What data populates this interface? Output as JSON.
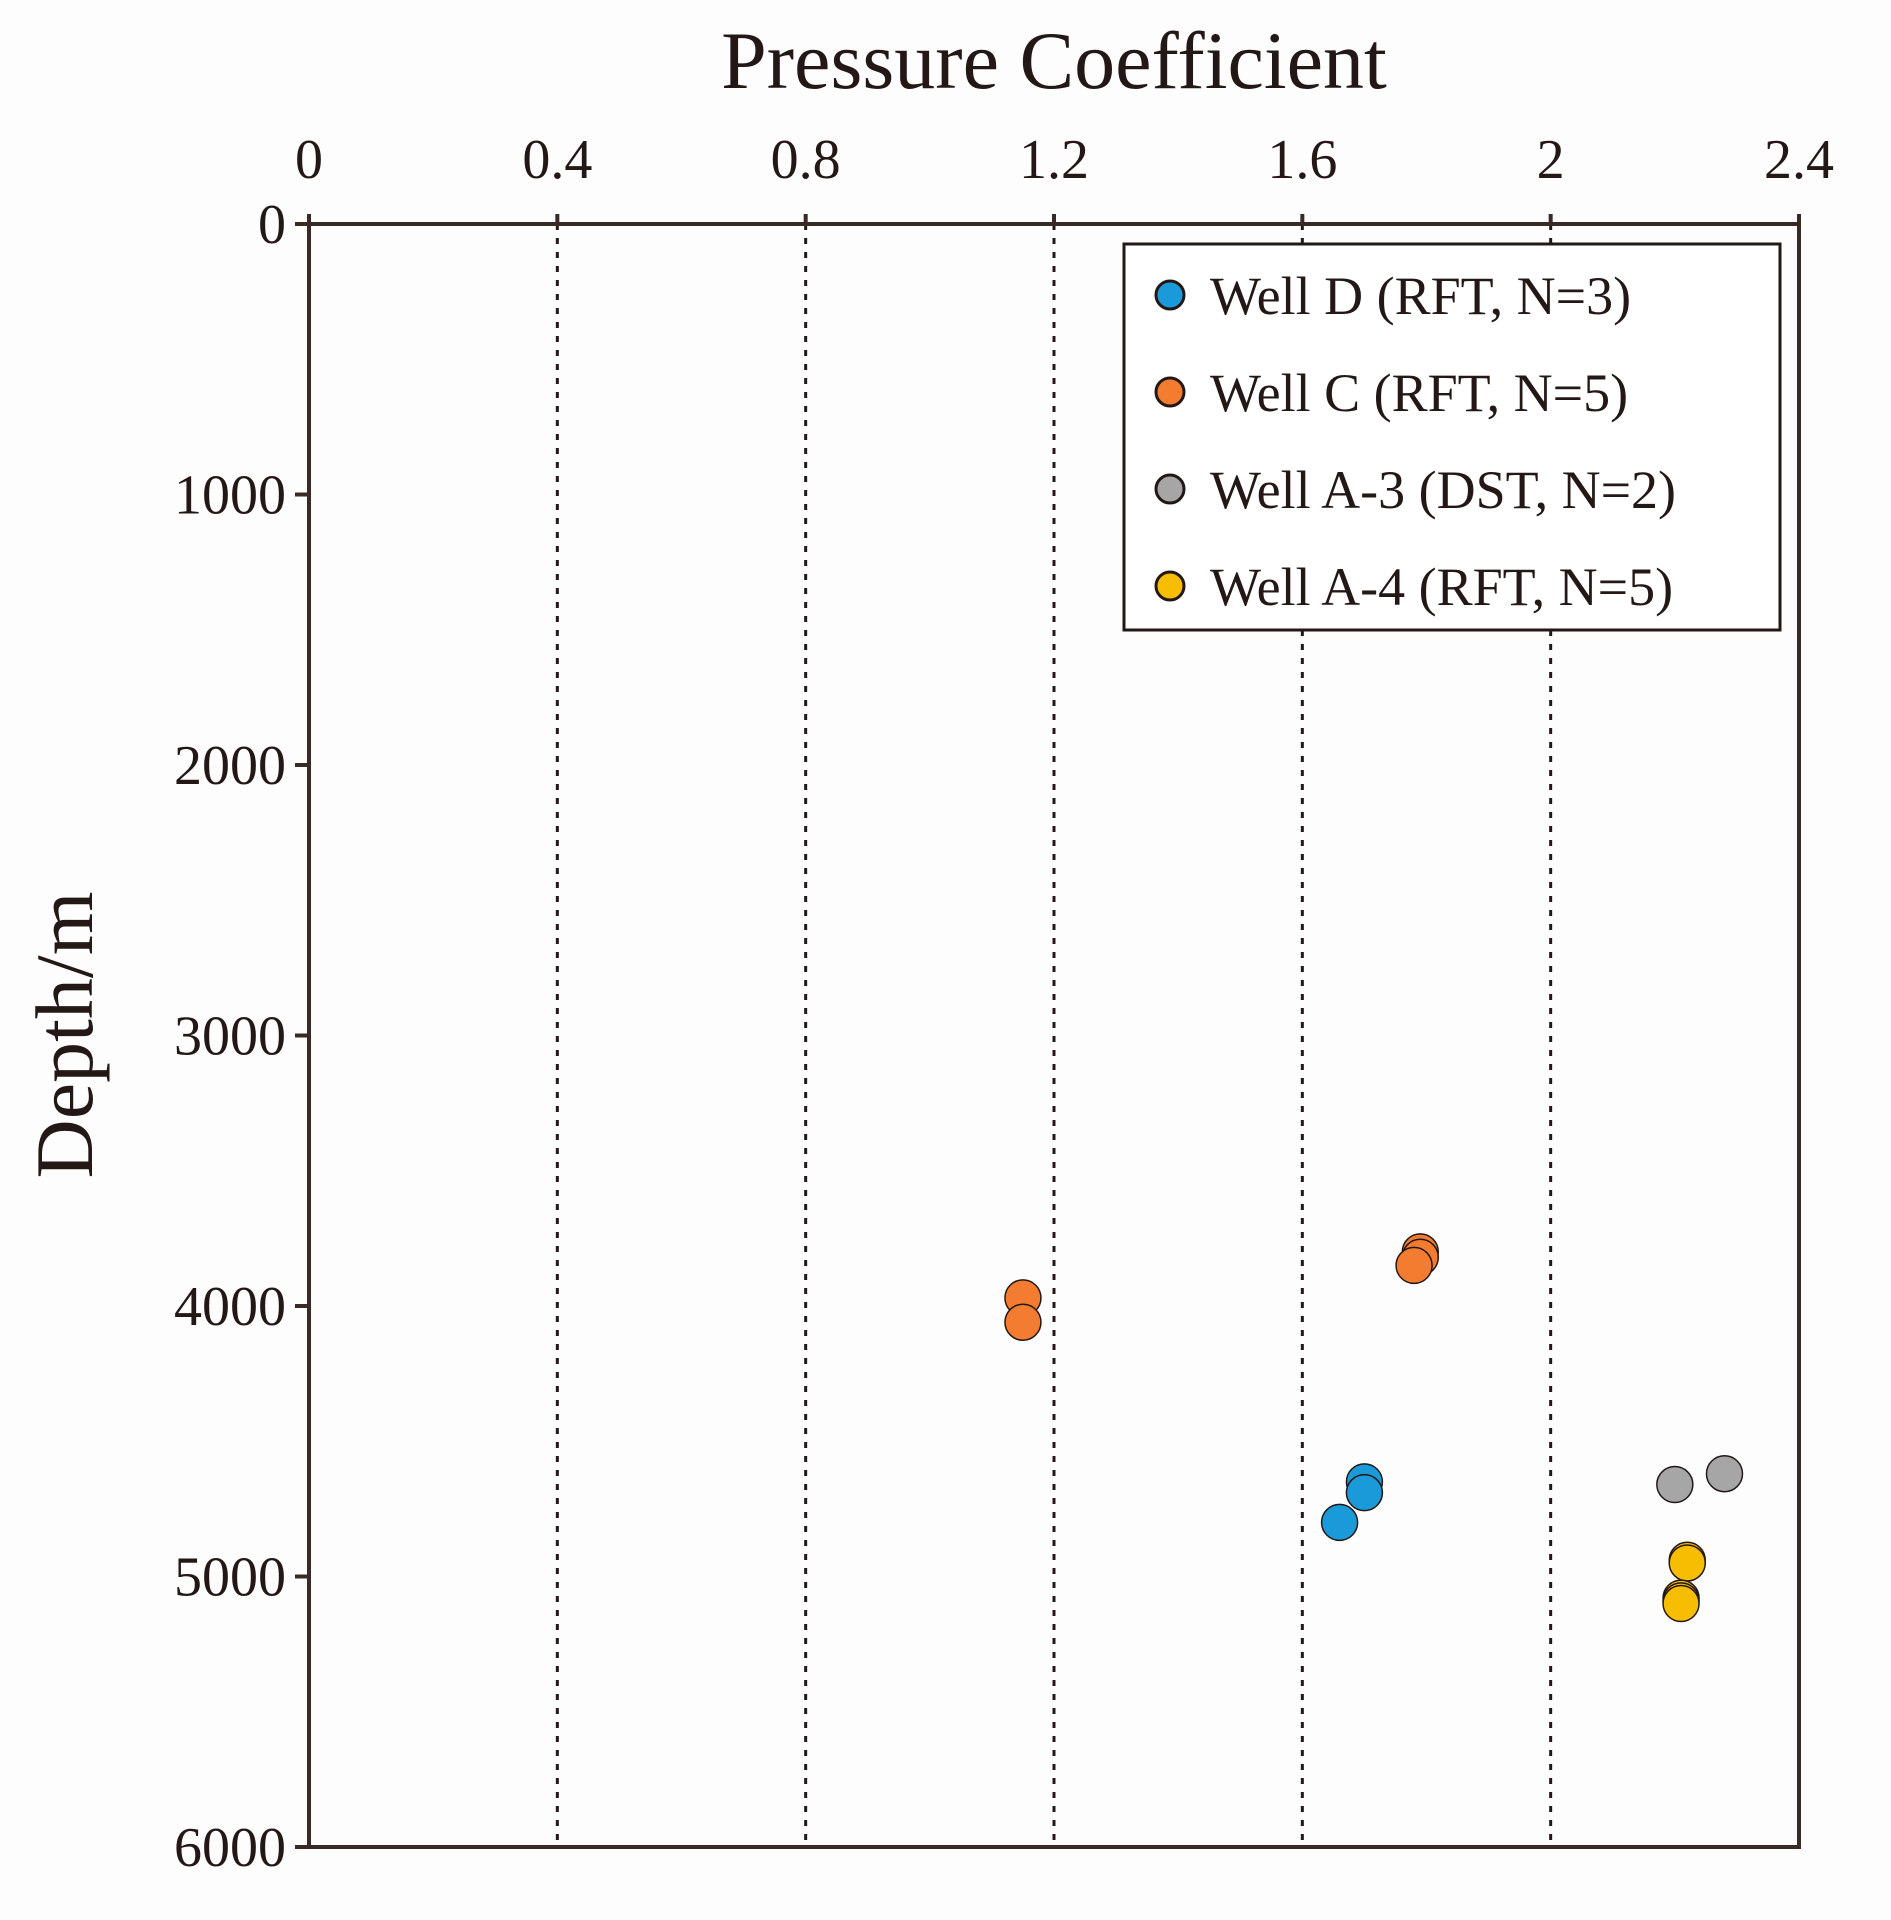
{
  "chart_data": {
    "type": "scatter",
    "title": "",
    "xlabel": "Pressure Coefficient",
    "ylabel": "Depth/m",
    "x_axis_position": "top",
    "y_axis_inverted": true,
    "xlim": [
      0,
      2.4
    ],
    "ylim": [
      0,
      6000
    ],
    "x_ticks": [
      "0",
      "0.4",
      "0.8",
      "1.2",
      "1.6",
      "2",
      "2.4"
    ],
    "y_ticks": [
      "0",
      "1000",
      "2000",
      "3000",
      "4000",
      "5000",
      "6000"
    ],
    "x_gridlines": [
      0.4,
      0.8,
      1.2,
      1.6,
      2.0
    ],
    "grid_style": "dotted vertical",
    "legend_position": "top-right",
    "series": [
      {
        "name": "Well D (RFT, N=3)",
        "color": "#1a9ad9",
        "points": [
          {
            "x": 1.7,
            "y": 4650
          },
          {
            "x": 1.7,
            "y": 4690
          },
          {
            "x": 1.66,
            "y": 4800
          }
        ]
      },
      {
        "name": "Well C (RFT, N=5)",
        "color": "#f47c30",
        "points": [
          {
            "x": 1.15,
            "y": 3970
          },
          {
            "x": 1.15,
            "y": 4060
          },
          {
            "x": 1.79,
            "y": 3800
          },
          {
            "x": 1.79,
            "y": 3820
          },
          {
            "x": 1.78,
            "y": 3850
          }
        ]
      },
      {
        "name": "Well A-3 (DST, N=2)",
        "color": "#a6a6a6",
        "points": [
          {
            "x": 2.2,
            "y": 4660
          },
          {
            "x": 2.28,
            "y": 4620
          }
        ]
      },
      {
        "name": "Well A-4 (RFT, N=5)",
        "color": "#f7bd00",
        "points": [
          {
            "x": 2.22,
            "y": 4940
          },
          {
            "x": 2.22,
            "y": 4950
          },
          {
            "x": 2.21,
            "y": 5080
          },
          {
            "x": 2.21,
            "y": 5090
          },
          {
            "x": 2.21,
            "y": 5100
          }
        ]
      }
    ]
  }
}
